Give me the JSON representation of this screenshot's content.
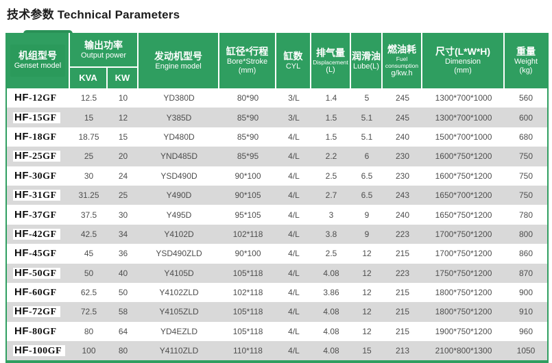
{
  "page": {
    "title": "技术参数 Technical Parameters"
  },
  "colors": {
    "header_green": "#2f9e60",
    "header_green_dark": "#2b9a5b",
    "stripe_gray": "#d9d9d9"
  },
  "table": {
    "headers": {
      "genset": {
        "zh": "机组型号",
        "en": "Genset model"
      },
      "output_power": {
        "zh": "输出功率",
        "en": "Output power",
        "sub": [
          "KVA",
          "KW"
        ]
      },
      "engine": {
        "zh": "发动机型号",
        "en": "Engine model"
      },
      "bore_stroke": {
        "zh": "缸径*行程",
        "en": "Bore*Stroke",
        "unit": "(mm)"
      },
      "cyl": {
        "zh": "缸数",
        "en": "CYL"
      },
      "displacement": {
        "zh": "排气量",
        "en": "Displacement",
        "unit": "(L)"
      },
      "lube": {
        "zh": "润滑油",
        "en": "Lube(L)"
      },
      "fuel": {
        "zh": "燃油耗",
        "en": "Fuel consumption",
        "unit": "g/kw.h"
      },
      "dimension": {
        "zh": "尺寸(L*W*H)",
        "en": "Dimension",
        "unit": "(mm)"
      },
      "weight": {
        "zh": "重量",
        "en": "Weight",
        "unit": "(kg)"
      }
    },
    "rows": [
      {
        "model": "HF-12GF",
        "kva": "12.5",
        "kw": "10",
        "engine": "YD380D",
        "bore_stroke": "80*90",
        "cyl": "3/L",
        "displacement": "1.4",
        "lube": "5",
        "fuel": "245",
        "dimension": "1300*700*1000",
        "weight": "560"
      },
      {
        "model": "HF-15GF",
        "kva": "15",
        "kw": "12",
        "engine": "Y385D",
        "bore_stroke": "85*90",
        "cyl": "3/L",
        "displacement": "1.5",
        "lube": "5.1",
        "fuel": "245",
        "dimension": "1300*700*1000",
        "weight": "600"
      },
      {
        "model": "HF-18GF",
        "kva": "18.75",
        "kw": "15",
        "engine": "YD480D",
        "bore_stroke": "85*90",
        "cyl": "4/L",
        "displacement": "1.5",
        "lube": "5.1",
        "fuel": "240",
        "dimension": "1500*700*1000",
        "weight": "680"
      },
      {
        "model": "HF-25GF",
        "kva": "25",
        "kw": "20",
        "engine": "YND485D",
        "bore_stroke": "85*95",
        "cyl": "4/L",
        "displacement": "2.2",
        "lube": "6",
        "fuel": "230",
        "dimension": "1600*750*1200",
        "weight": "750"
      },
      {
        "model": "HF-30GF",
        "kva": "30",
        "kw": "24",
        "engine": "YSD490D",
        "bore_stroke": "90*100",
        "cyl": "4/L",
        "displacement": "2.5",
        "lube": "6.5",
        "fuel": "230",
        "dimension": "1600*750*1200",
        "weight": "750"
      },
      {
        "model": "HF-31GF",
        "kva": "31.25",
        "kw": "25",
        "engine": "Y490D",
        "bore_stroke": "90*105",
        "cyl": "4/L",
        "displacement": "2.7",
        "lube": "6.5",
        "fuel": "243",
        "dimension": "1650*700*1200",
        "weight": "750"
      },
      {
        "model": "HF-37GF",
        "kva": "37.5",
        "kw": "30",
        "engine": "Y495D",
        "bore_stroke": "95*105",
        "cyl": "4/L",
        "displacement": "3",
        "lube": "9",
        "fuel": "240",
        "dimension": "1650*750*1200",
        "weight": "780"
      },
      {
        "model": "HF-42GF",
        "kva": "42.5",
        "kw": "34",
        "engine": "Y4102D",
        "bore_stroke": "102*118",
        "cyl": "4/L",
        "displacement": "3.8",
        "lube": "9",
        "fuel": "223",
        "dimension": "1700*750*1200",
        "weight": "800"
      },
      {
        "model": "HF-45GF",
        "kva": "45",
        "kw": "36",
        "engine": "YSD490ZLD",
        "bore_stroke": "90*100",
        "cyl": "4/L",
        "displacement": "2.5",
        "lube": "12",
        "fuel": "215",
        "dimension": "1700*750*1200",
        "weight": "860"
      },
      {
        "model": "HF-50GF",
        "kva": "50",
        "kw": "40",
        "engine": "Y4105D",
        "bore_stroke": "105*118",
        "cyl": "4/L",
        "displacement": "4.08",
        "lube": "12",
        "fuel": "223",
        "dimension": "1750*750*1200",
        "weight": "870"
      },
      {
        "model": "HF-60GF",
        "kva": "62.5",
        "kw": "50",
        "engine": "Y4102ZLD",
        "bore_stroke": "102*118",
        "cyl": "4/L",
        "displacement": "3.86",
        "lube": "12",
        "fuel": "215",
        "dimension": "1800*750*1200",
        "weight": "900"
      },
      {
        "model": "HF-72GF",
        "kva": "72.5",
        "kw": "58",
        "engine": "Y4105ZLD",
        "bore_stroke": "105*118",
        "cyl": "4/L",
        "displacement": "4.08",
        "lube": "12",
        "fuel": "215",
        "dimension": "1800*750*1200",
        "weight": "910"
      },
      {
        "model": "HF-80GF",
        "kva": "80",
        "kw": "64",
        "engine": "YD4EZLD",
        "bore_stroke": "105*118",
        "cyl": "4/L",
        "displacement": "4.08",
        "lube": "12",
        "fuel": "215",
        "dimension": "1900*750*1200",
        "weight": "960"
      },
      {
        "model": "HF-100GF",
        "kva": "100",
        "kw": "80",
        "engine": "Y4110ZLD",
        "bore_stroke": "110*118",
        "cyl": "4/L",
        "displacement": "4.08",
        "lube": "15",
        "fuel": "213",
        "dimension": "2100*800*1300",
        "weight": "1050"
      }
    ]
  }
}
